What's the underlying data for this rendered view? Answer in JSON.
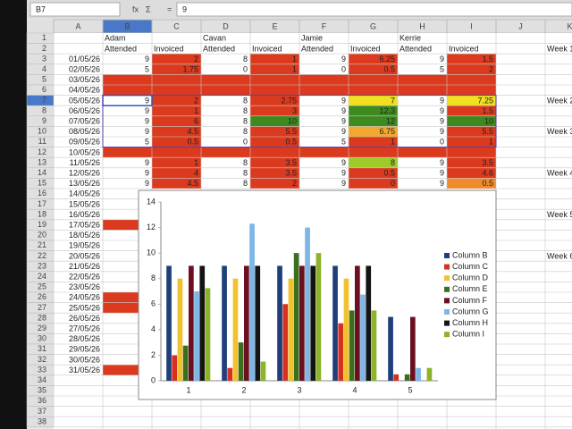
{
  "toolbar": {
    "name_box": "B7",
    "icons": [
      "fx",
      "Σ",
      "="
    ],
    "formula": "9"
  },
  "columns": [
    "A",
    "B",
    "C",
    "D",
    "E",
    "F",
    "G",
    "H",
    "I",
    "J",
    "K"
  ],
  "rows": [
    "1",
    "2",
    "3",
    "4",
    "5",
    "6",
    "7",
    "8",
    "9",
    "10",
    "11",
    "12",
    "13",
    "14",
    "15",
    "16",
    "17",
    "18",
    "19",
    "20",
    "21",
    "22",
    "23",
    "24",
    "25",
    "26",
    "27",
    "28",
    "29",
    "30",
    "31",
    "32",
    "33",
    "34",
    "35",
    "36",
    "37",
    "38"
  ],
  "cells": {
    "B1": "Adam",
    "D1": "Cavan",
    "F1": "Jamie",
    "H1": "Kerrie",
    "B2": "Attended",
    "C2": "Invoiced",
    "D2": "Attended",
    "E2": "Invoiced",
    "F2": "Attended",
    "G2": "Invoiced",
    "H2": "Attended",
    "I2": "Invoiced",
    "K2": "Week 1",
    "A3": "01/05/26",
    "B3": 9,
    "C3": 2,
    "D3": 8,
    "E3": 1,
    "F3": 9,
    "G3": 6.25,
    "H3": 9,
    "I3": 1.5,
    "A4": "02/05/26",
    "B4": 5,
    "C4": 1.75,
    "D4": 0,
    "E4": 1,
    "F4": 0,
    "G4": 0.5,
    "H4": 5,
    "I4": 2,
    "A5": "03/05/26",
    "A6": "04/05/26",
    "A7": "05/05/26",
    "B7": 9,
    "C7": 2,
    "D7": 8,
    "E7": 2.75,
    "F7": 9,
    "G7": 7,
    "H7": 9,
    "I7": 7.25,
    "K7": "Week 2",
    "A8": "06/05/26",
    "B8": 9,
    "C8": 1,
    "D8": 8,
    "E8": 3,
    "F8": 9,
    "G8": 12.3,
    "H8": 9,
    "I8": 1.5,
    "A9": "07/05/26",
    "B9": 9,
    "C9": 6,
    "D9": 8,
    "E9": 10,
    "F9": 9,
    "G9": 12,
    "H9": 9,
    "I9": 10,
    "A10": "08/05/26",
    "B10": 9,
    "C10": 4.5,
    "D10": 8,
    "E10": 5.5,
    "F10": 9,
    "G10": 6.75,
    "H10": 9,
    "I10": 5.5,
    "K10": "Week 3",
    "A11": "09/05/26",
    "B11": 5,
    "C11": 0.5,
    "D11": 0,
    "E11": 0.5,
    "F11": 5,
    "G11": 1,
    "H11": 0,
    "I11": 1,
    "A12": "10/05/26",
    "A13": "11/05/26",
    "B13": 9,
    "C13": 1,
    "D13": 8,
    "E13": 3.5,
    "F13": 9,
    "G13": 8,
    "H13": 9,
    "I13": 3.5,
    "A14": "12/05/26",
    "B14": 9,
    "C14": 4,
    "D14": 8,
    "E14": 3.5,
    "F14": 9,
    "G14": 0.5,
    "H14": 9,
    "I14": 4.6,
    "K14": "Week 4",
    "A15": "13/05/26",
    "B15": 9,
    "C15": 4.5,
    "D15": 8,
    "E15": 2,
    "F15": 9,
    "G15": 0,
    "H15": 9,
    "I15": 0.5,
    "A16": "14/05/26",
    "A17": "15/05/26",
    "A18": "16/05/26",
    "K18": "Week 5",
    "A19": "17/05/26",
    "A20": "18/05/26",
    "A21": "19/05/26",
    "A22": "20/05/26",
    "K22": "Week 6",
    "A23": "21/05/26",
    "A24": "22/05/26",
    "A25": "23/05/26",
    "A26": "24/05/26",
    "A27": "25/05/26",
    "A28": "26/05/26",
    "A29": "27/05/26",
    "A30": "28/05/26",
    "A31": "29/05/26",
    "A32": "30/05/26",
    "A33": "31/05/26"
  },
  "chart_data": {
    "type": "bar",
    "categories": [
      "1",
      "2",
      "3",
      "4",
      "5"
    ],
    "ylim": [
      0,
      14
    ],
    "yticks": [
      0,
      2,
      4,
      6,
      8,
      10,
      12,
      14
    ],
    "grid": false,
    "legend": "right",
    "series": [
      {
        "name": "Column B",
        "color": "#1f3f7a",
        "values": [
          9,
          9,
          9,
          9,
          5
        ]
      },
      {
        "name": "Column C",
        "color": "#d7301f",
        "values": [
          2,
          1,
          6,
          4.5,
          0.5
        ]
      },
      {
        "name": "Column D",
        "color": "#f2c12e",
        "values": [
          8,
          8,
          8,
          8,
          0
        ]
      },
      {
        "name": "Column E",
        "color": "#3b6e1e",
        "values": [
          2.75,
          3,
          10,
          5.5,
          0.5
        ]
      },
      {
        "name": "Column F",
        "color": "#6a1020",
        "values": [
          9,
          9,
          9,
          9,
          5
        ]
      },
      {
        "name": "Column G",
        "color": "#7eb6e6",
        "values": [
          7,
          12.3,
          12,
          6.75,
          1
        ]
      },
      {
        "name": "Column H",
        "color": "#141414",
        "values": [
          9,
          9,
          9,
          9,
          0
        ]
      },
      {
        "name": "Column I",
        "color": "#8db32a",
        "values": [
          7.25,
          1.5,
          10,
          5.5,
          1
        ]
      }
    ]
  }
}
